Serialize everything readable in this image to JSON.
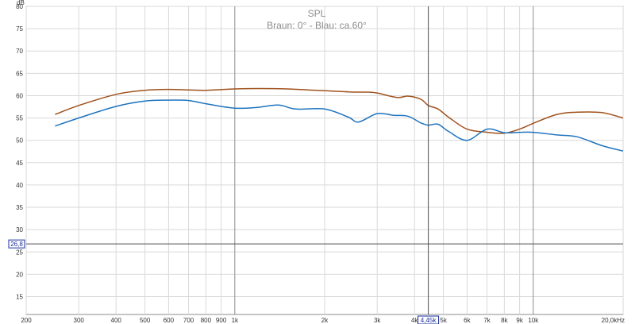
{
  "chart_data": {
    "type": "line",
    "title": "SPL",
    "subtitle": "Braun: 0° - Blau: ca.60°",
    "ylabel": "dB",
    "xscale": "log",
    "xlim": [
      200,
      20000
    ],
    "ylim": [
      11,
      80
    ],
    "grid": true,
    "yticks": [
      15,
      20,
      25,
      30,
      35,
      40,
      45,
      50,
      55,
      60,
      65,
      70,
      75,
      80
    ],
    "yticks_text": [
      "15",
      "20",
      "25",
      "30",
      "35",
      "40",
      "45",
      "50",
      "55",
      "60",
      "65",
      "70",
      "75",
      "80"
    ],
    "xticks": [
      200,
      300,
      400,
      500,
      600,
      700,
      800,
      900,
      1000,
      2000,
      3000,
      4000,
      5000,
      6000,
      7000,
      8000,
      9000,
      10000,
      20000
    ],
    "xticks_text": [
      "200",
      "300",
      "400",
      "500",
      "600",
      "700",
      "800",
      "900",
      "1k",
      "2k",
      "3k",
      "4k",
      "5k",
      "6k",
      "7k",
      "8k",
      "9k",
      "10k",
      "20,0kHz"
    ],
    "cursor": {
      "x": 4450,
      "x_label": "4,45k",
      "y": 26.8,
      "y_label": "26,8"
    },
    "series": [
      {
        "color": "#a0521d",
        "x": [
          250,
          300,
          400,
          500,
          600,
          700,
          800,
          1000,
          1200,
          1500,
          2000,
          2500,
          2800,
          3000,
          3500,
          3800,
          4200,
          4450,
          4800,
          5200,
          6000,
          7000,
          8000,
          9000,
          10000,
          12000,
          14000,
          17000,
          20000
        ],
        "y": [
          55.8,
          57.8,
          60.3,
          61.2,
          61.4,
          61.3,
          61.2,
          61.5,
          61.6,
          61.5,
          61.1,
          60.8,
          60.8,
          60.6,
          59.6,
          59.9,
          59.2,
          57.8,
          57.0,
          55.2,
          52.5,
          51.8,
          51.6,
          52.5,
          53.8,
          55.8,
          56.3,
          56.2,
          55.0
        ]
      },
      {
        "color": "#1f74be",
        "x": [
          250,
          300,
          400,
          500,
          600,
          700,
          800,
          1000,
          1200,
          1400,
          1600,
          2000,
          2400,
          2600,
          3000,
          3400,
          3800,
          4200,
          4450,
          4800,
          5200,
          6000,
          7000,
          8000,
          9000,
          10000,
          12000,
          14000,
          17000,
          20000
        ],
        "y": [
          53.2,
          55.0,
          57.6,
          58.8,
          59.0,
          58.9,
          58.2,
          57.2,
          57.4,
          57.9,
          57.0,
          57.0,
          55.2,
          54.1,
          56.0,
          55.6,
          55.4,
          53.9,
          53.4,
          53.6,
          52.0,
          50.0,
          52.5,
          51.7,
          51.8,
          51.8,
          51.2,
          50.8,
          48.8,
          47.6
        ]
      }
    ]
  }
}
